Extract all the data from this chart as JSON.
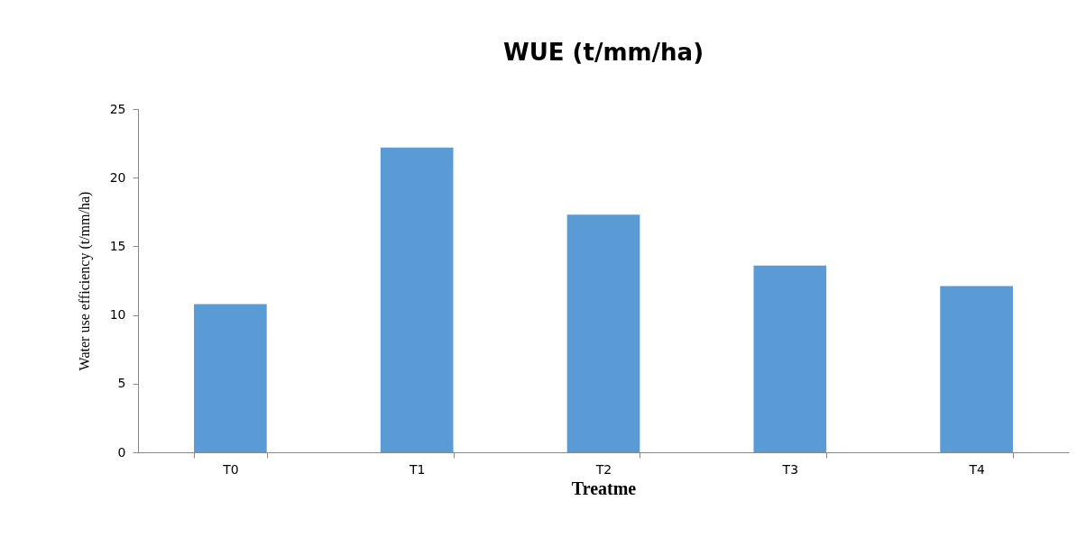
{
  "chart_data": {
    "type": "bar",
    "title": "WUE (t/mm/ha)",
    "xlabel": "Treatme",
    "ylabel": "Water use efficiency (t/mm/ha)",
    "categories": [
      "T0",
      "T1",
      "T2",
      "T3",
      "T4"
    ],
    "values": [
      10.8,
      22.2,
      17.3,
      13.6,
      12.1
    ],
    "color": "#5b9bd5",
    "ylim": [
      0,
      25
    ],
    "yticks": [
      0,
      5,
      10,
      15,
      20,
      25
    ],
    "grid": false
  }
}
